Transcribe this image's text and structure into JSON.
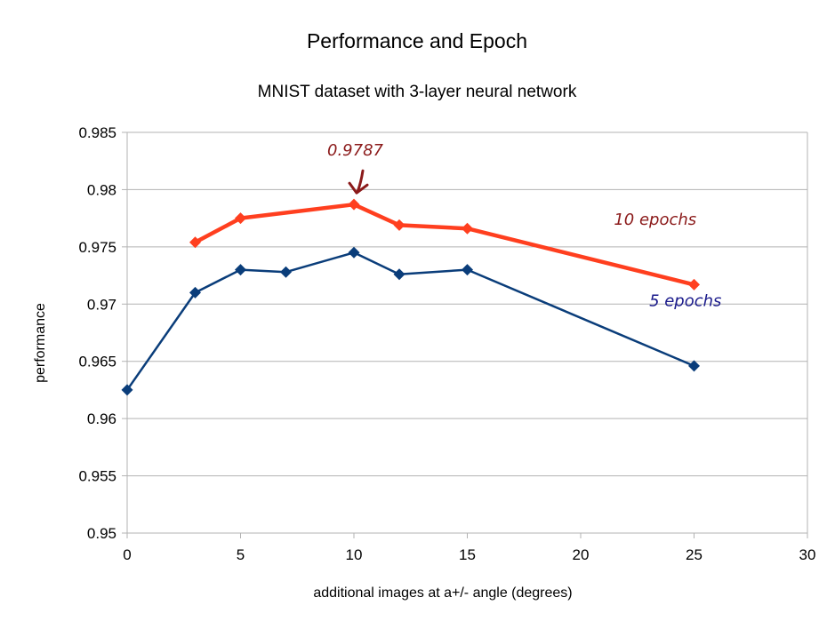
{
  "chart_data": {
    "type": "line",
    "title": "Performance and Epoch",
    "subtitle": "MNIST dataset with 3-layer neural network",
    "xlabel": "additional images at a+/- angle (degrees)",
    "ylabel": "performance",
    "xlim": [
      0,
      30
    ],
    "ylim": [
      0.95,
      0.985
    ],
    "xticks": [
      0,
      5,
      10,
      15,
      20,
      25,
      30
    ],
    "yticks": [
      0.95,
      0.955,
      0.96,
      0.965,
      0.97,
      0.975,
      0.98,
      0.985
    ],
    "xtick_labels": [
      "0",
      "5",
      "10",
      "15",
      "20",
      "25",
      "30"
    ],
    "ytick_labels": [
      "0.95",
      "0.955",
      "0.96",
      "0.965",
      "0.97",
      "0.975",
      "0.98",
      "0.985"
    ],
    "grid": true,
    "series": [
      {
        "label": "10 epochs",
        "color": "#ff3f1f",
        "marker": "diamond",
        "x": [
          3,
          5,
          10,
          12,
          15,
          25
        ],
        "y": [
          0.9754,
          0.9775,
          0.9787,
          0.9769,
          0.9766,
          0.9717
        ]
      },
      {
        "label": "5 epochs",
        "color": "#0a3d7a",
        "marker": "diamond",
        "x": [
          0,
          3,
          5,
          7,
          10,
          12,
          15,
          25
        ],
        "y": [
          0.9625,
          0.971,
          0.973,
          0.9728,
          0.9745,
          0.9726,
          0.973,
          0.9646
        ]
      }
    ],
    "annotations": [
      {
        "text": "0.9787",
        "color": "#8b1a1a",
        "points_to": {
          "x": 10,
          "y": 0.9787
        }
      },
      {
        "text": "10 epochs",
        "color": "#8b1a1a"
      },
      {
        "text": "5 epochs",
        "color": "#1a1a8b"
      }
    ]
  }
}
